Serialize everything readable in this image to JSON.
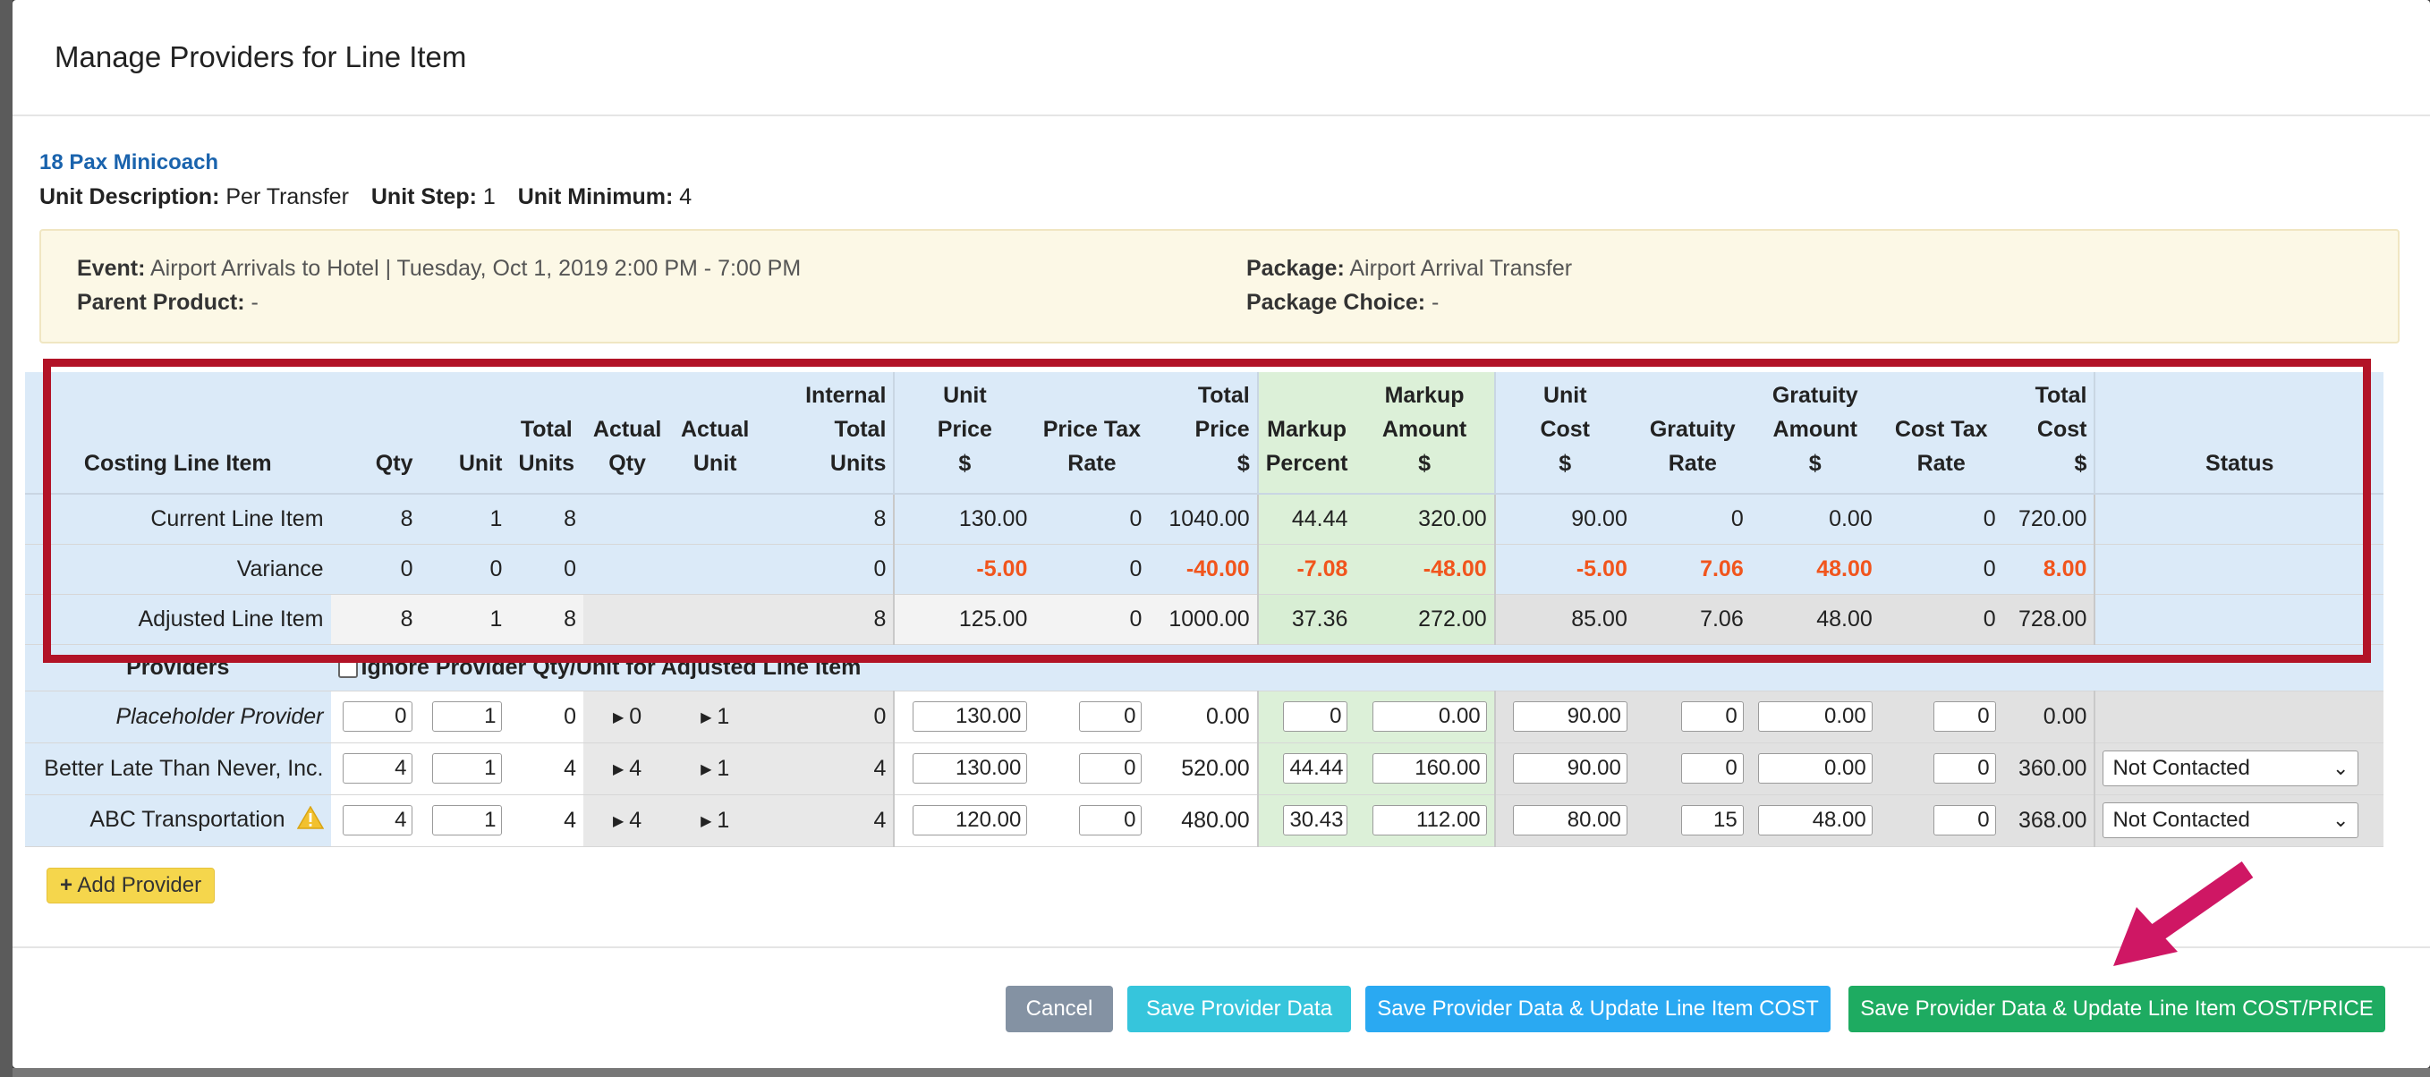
{
  "modal": {
    "title": "Manage Providers for Line Item"
  },
  "product": {
    "name": "18 Pax Minicoach",
    "unit_description_label": "Unit Description:",
    "unit_description": "Per Transfer",
    "unit_step_label": "Unit Step:",
    "unit_step": "1",
    "unit_minimum_label": "Unit Minimum:",
    "unit_minimum": "4"
  },
  "event_box": {
    "event_label": "Event:",
    "event_value": "Airport Arrivals to Hotel | Tuesday, Oct 1, 2019 2:00 PM - 7:00 PM",
    "parent_label": "Parent Product:",
    "parent_value": "-",
    "package_label": "Package:",
    "package_value": "Airport Arrival Transfer",
    "package_choice_label": "Package Choice:",
    "package_choice_value": "-"
  },
  "table": {
    "headers": {
      "costing": "Costing Line Item",
      "qty": "Qty",
      "unit": "Unit",
      "total_units": [
        "Total",
        "Units"
      ],
      "actual_qty": [
        "Actual",
        "Qty"
      ],
      "actual_unit": [
        "Actual",
        "Unit"
      ],
      "internal_total_units": [
        "Internal",
        "Total",
        "Units"
      ],
      "unit_price": [
        "Unit",
        "Price",
        "$"
      ],
      "price_tax_rate": [
        "Price Tax",
        "Rate"
      ],
      "total_price": [
        "Total",
        "Price",
        "$"
      ],
      "markup_percent": [
        "Markup",
        "Percent"
      ],
      "markup_amount": [
        "Markup",
        "Amount",
        "$"
      ],
      "unit_cost": [
        "Unit",
        "Cost",
        "$"
      ],
      "gratuity_rate": [
        "Gratuity",
        "Rate"
      ],
      "gratuity_amount": [
        "Gratuity",
        "Amount",
        "$"
      ],
      "cost_tax_rate": [
        "Cost Tax",
        "Rate"
      ],
      "total_cost": [
        "Total",
        "Cost",
        "$"
      ],
      "status": "Status"
    },
    "summary_rows": [
      {
        "name": "Current Line Item",
        "qty": "8",
        "unit": "1",
        "total_units": "8",
        "internal_total_units": "8",
        "unit_price": "130.00",
        "price_tax_rate": "0",
        "total_price": "1040.00",
        "markup_percent": "44.44",
        "markup_amount": "320.00",
        "unit_cost": "90.00",
        "gratuity_rate": "0",
        "gratuity_amount": "0.00",
        "cost_tax_rate": "0",
        "total_cost": "720.00"
      },
      {
        "name": "Variance",
        "qty": "0",
        "unit": "0",
        "total_units": "0",
        "internal_total_units": "0",
        "unit_price": "-5.00",
        "price_tax_rate": "0",
        "total_price": "-40.00",
        "markup_percent": "-7.08",
        "markup_amount": "-48.00",
        "unit_cost": "-5.00",
        "gratuity_rate": "7.06",
        "gratuity_amount": "48.00",
        "cost_tax_rate": "0",
        "total_cost": "8.00"
      },
      {
        "name": "Adjusted Line Item",
        "qty": "8",
        "unit": "1",
        "total_units": "8",
        "internal_total_units": "8",
        "unit_price": "125.00",
        "price_tax_rate": "0",
        "total_price": "1000.00",
        "markup_percent": "37.36",
        "markup_amount": "272.00",
        "unit_cost": "85.00",
        "gratuity_rate": "7.06",
        "gratuity_amount": "48.00",
        "cost_tax_rate": "0",
        "total_cost": "728.00"
      }
    ],
    "providers_label": "Providers",
    "ignore_label": "Ignore Provider Qty/Unit for Adjusted Line Item",
    "provider_rows": [
      {
        "name": "Placeholder Provider",
        "qty": "0",
        "unit": "1",
        "total_units": "0",
        "actual_qty": "0",
        "actual_unit": "1",
        "internal_total_units": "0",
        "unit_price": "130.00",
        "price_tax_rate": "0",
        "total_price": "0.00",
        "markup_percent": "0",
        "markup_amount": "0.00",
        "unit_cost": "90.00",
        "gratuity_rate": "0",
        "gratuity_amount": "0.00",
        "cost_tax_rate": "0",
        "total_cost": "0.00",
        "status": ""
      },
      {
        "name": "Better Late Than Never, Inc.",
        "qty": "4",
        "unit": "1",
        "total_units": "4",
        "actual_qty": "4",
        "actual_unit": "1",
        "internal_total_units": "4",
        "unit_price": "130.00",
        "price_tax_rate": "0",
        "total_price": "520.00",
        "markup_percent": "44.44",
        "markup_amount": "160.00",
        "unit_cost": "90.00",
        "gratuity_rate": "0",
        "gratuity_amount": "0.00",
        "cost_tax_rate": "0",
        "total_cost": "360.00",
        "status": "Not Contacted"
      },
      {
        "name": "ABC Transportation",
        "qty": "4",
        "unit": "1",
        "total_units": "4",
        "actual_qty": "4",
        "actual_unit": "1",
        "internal_total_units": "4",
        "unit_price": "120.00",
        "price_tax_rate": "0",
        "total_price": "480.00",
        "markup_percent": "30.43",
        "markup_amount": "112.00",
        "unit_cost": "80.00",
        "gratuity_rate": "15",
        "gratuity_amount": "48.00",
        "cost_tax_rate": "0",
        "total_cost": "368.00",
        "status": "Not Contacted"
      }
    ]
  },
  "add_provider_label": "Add Provider",
  "footer": {
    "cancel": "Cancel",
    "save": "Save Provider Data",
    "save_update_cost": "Save Provider Data & Update Line Item COST",
    "save_update_cost_price": "Save Provider Data & Update Line Item COST/PRICE"
  },
  "colors": {
    "header_blue": "#dbeaf8",
    "markup_green": "#dcf0d8",
    "variance_red": "#f1551d",
    "annotation_red": "#b21327",
    "arrow_magenta": "#cf1764",
    "btn_cancel": "#8492a3",
    "btn_save": "#36c5dc",
    "btn_cost": "#2aa9f2",
    "btn_cost_price": "#1eab61",
    "add_button": "#f5d64c"
  },
  "icons": {
    "warning": "warning-icon",
    "plus": "plus-icon",
    "expand": "caret-right-icon",
    "dropdown": "chevron-down-icon"
  }
}
